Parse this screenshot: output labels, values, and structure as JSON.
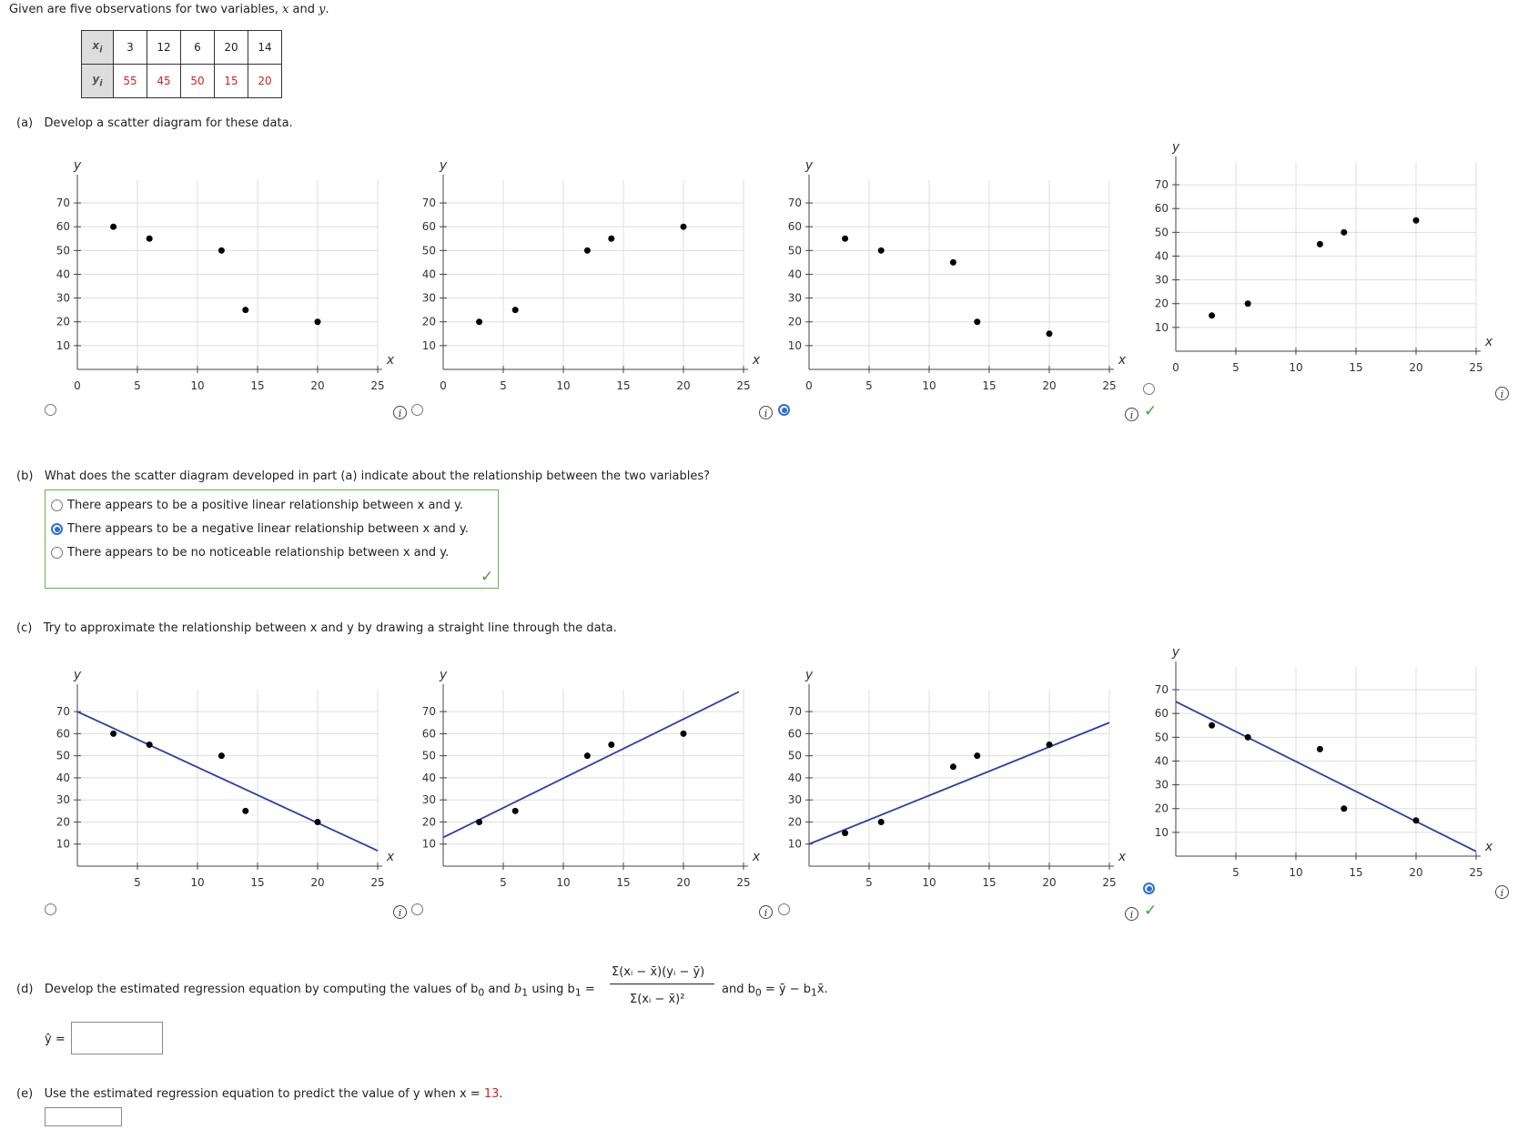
{
  "intro": {
    "prefix": "Given are five observations for two variables,",
    "var_x": "x",
    "and": "and",
    "var_y": "y",
    "period": "."
  },
  "table": {
    "x_header": "x",
    "y_header": "y",
    "sub": "i",
    "x_values": [
      "3",
      "12",
      "6",
      "20",
      "14"
    ],
    "y_values": [
      "55",
      "45",
      "50",
      "15",
      "20"
    ]
  },
  "part_a": {
    "label": "(a)",
    "text": "Develop a scatter diagram for these data."
  },
  "part_b": {
    "label": "(b)",
    "question": "What does the scatter diagram developed in part (a) indicate about the relationship between the two variables?",
    "options": [
      {
        "text": "There appears to be a positive linear relationship between x and y.",
        "selected": false
      },
      {
        "text": "There appears to be a negative linear relationship between x and y.",
        "selected": true
      },
      {
        "text": "There appears to be no noticeable relationship between x and y.",
        "selected": false
      }
    ]
  },
  "part_c": {
    "label": "(c)",
    "text": "Try to approximate the relationship between x and y by drawing a straight line through the data."
  },
  "part_d": {
    "label": "(d)",
    "text": "Develop the estimated regression equation by computing the values of b",
    "using": "using b",
    "num": "Σ(xᵢ − x̄)(yᵢ − ȳ)",
    "den": "Σ(xᵢ − x̄)²",
    "and_b0": "and b",
    "b0_formula": "= ȳ − b",
    "x_bar_end": "x̄.",
    "yhat_label": "ŷ =",
    "yhat_value": ""
  },
  "part_e": {
    "label": "(e)",
    "text": "Use the estimated regression equation to predict the value of y when x =",
    "x_value": "13",
    "period": ".",
    "answer": ""
  },
  "info_symbol": "i",
  "check_symbol": "✓",
  "axis_labels": {
    "x": "x",
    "y": "y"
  },
  "chart_data": [
    {
      "type": "scatter",
      "group": "a",
      "option": 1,
      "selected": false,
      "x": [
        3,
        6,
        12,
        14,
        20
      ],
      "y": [
        60,
        55,
        50,
        25,
        20
      ],
      "xlim": [
        0,
        25
      ],
      "ylim": [
        0,
        75
      ],
      "xticks": [
        "0",
        "5",
        "10",
        "15",
        "20",
        "25"
      ],
      "yticks": [
        "10",
        "20",
        "30",
        "40",
        "50",
        "60",
        "70"
      ],
      "line": null
    },
    {
      "type": "scatter",
      "group": "a",
      "option": 2,
      "selected": false,
      "x": [
        3,
        6,
        12,
        14,
        20
      ],
      "y": [
        20,
        25,
        50,
        55,
        60
      ],
      "xlim": [
        0,
        25
      ],
      "ylim": [
        0,
        75
      ],
      "xticks": [
        "0",
        "5",
        "10",
        "15",
        "20",
        "25"
      ],
      "yticks": [
        "10",
        "20",
        "30",
        "40",
        "50",
        "60",
        "70"
      ],
      "line": null
    },
    {
      "type": "scatter",
      "group": "a",
      "option": 3,
      "selected": true,
      "x": [
        3,
        6,
        12,
        14,
        20
      ],
      "y": [
        55,
        50,
        45,
        20,
        15
      ],
      "xlim": [
        0,
        25
      ],
      "ylim": [
        0,
        75
      ],
      "xticks": [
        "0",
        "5",
        "10",
        "15",
        "20",
        "25"
      ],
      "yticks": [
        "10",
        "20",
        "30",
        "40",
        "50",
        "60",
        "70"
      ],
      "line": null
    },
    {
      "type": "scatter",
      "group": "a",
      "option": 4,
      "selected": false,
      "x": [
        3,
        6,
        12,
        14,
        20
      ],
      "y": [
        15,
        20,
        45,
        50,
        55
      ],
      "xlim": [
        0,
        25
      ],
      "ylim": [
        0,
        75
      ],
      "xticks": [
        "0",
        "5",
        "10",
        "15",
        "20",
        "25"
      ],
      "yticks": [
        "10",
        "20",
        "30",
        "40",
        "50",
        "60",
        "70"
      ],
      "line": null
    },
    {
      "type": "scatter",
      "group": "c",
      "option": 1,
      "selected": false,
      "x": [
        3,
        6,
        12,
        14,
        20
      ],
      "y": [
        60,
        55,
        50,
        25,
        20
      ],
      "xlim": [
        0,
        25
      ],
      "ylim": [
        0,
        75
      ],
      "xticks": [
        "5",
        "10",
        "15",
        "20",
        "25"
      ],
      "yticks": [
        "10",
        "20",
        "30",
        "40",
        "50",
        "60",
        "70"
      ],
      "line": [
        [
          0,
          70
        ],
        [
          25,
          7
        ]
      ]
    },
    {
      "type": "scatter",
      "group": "c",
      "option": 2,
      "selected": false,
      "x": [
        3,
        6,
        12,
        14,
        20
      ],
      "y": [
        20,
        25,
        50,
        55,
        60
      ],
      "xlim": [
        0,
        25
      ],
      "ylim": [
        0,
        75
      ],
      "xticks": [
        "5",
        "10",
        "15",
        "20",
        "25"
      ],
      "yticks": [
        "10",
        "20",
        "30",
        "40",
        "50",
        "60",
        "70"
      ],
      "line": [
        [
          0,
          13
        ],
        [
          25,
          80
        ]
      ]
    },
    {
      "type": "scatter",
      "group": "c",
      "option": 3,
      "selected": false,
      "x": [
        3,
        6,
        12,
        14,
        20
      ],
      "y": [
        15,
        20,
        45,
        50,
        55
      ],
      "xlim": [
        0,
        25
      ],
      "ylim": [
        0,
        75
      ],
      "xticks": [
        "5",
        "10",
        "15",
        "20",
        "25"
      ],
      "yticks": [
        "10",
        "20",
        "30",
        "40",
        "50",
        "60",
        "70"
      ],
      "line": [
        [
          0,
          10
        ],
        [
          25,
          65
        ]
      ]
    },
    {
      "type": "scatter",
      "group": "c",
      "option": 4,
      "selected": true,
      "x": [
        3,
        6,
        12,
        14,
        20
      ],
      "y": [
        55,
        50,
        45,
        20,
        15
      ],
      "xlim": [
        0,
        25
      ],
      "ylim": [
        0,
        75
      ],
      "xticks": [
        "5",
        "10",
        "15",
        "20",
        "25"
      ],
      "yticks": [
        "10",
        "20",
        "30",
        "40",
        "50",
        "60",
        "70"
      ],
      "line": [
        [
          0,
          65
        ],
        [
          25,
          2
        ]
      ]
    }
  ],
  "colors": {
    "accent": "#2c6fd6",
    "line": "#2b3fa8",
    "correct": "#3aa335",
    "highlight": "#d0261f"
  }
}
